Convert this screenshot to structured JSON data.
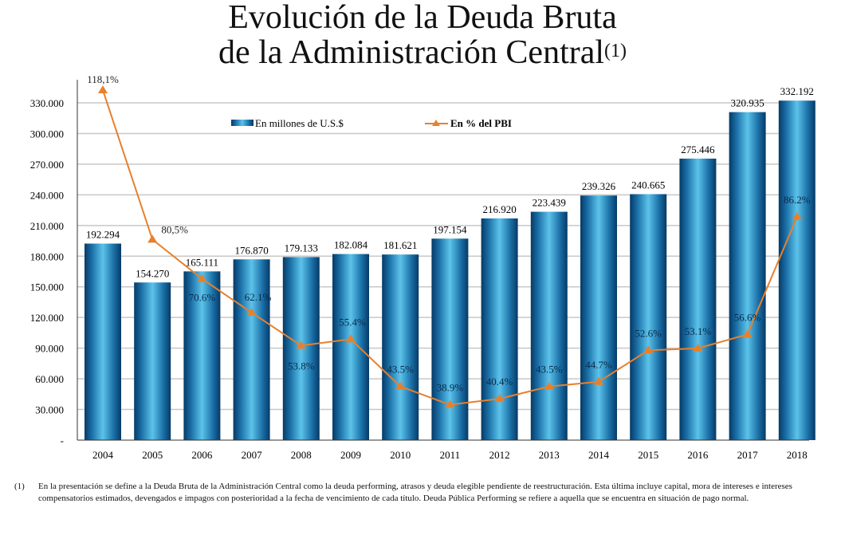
{
  "title": {
    "line1": "Evolución de la Deuda Bruta",
    "line2": "de la Administración Central",
    "superscript": "(1)"
  },
  "chart_data": {
    "type": "bar+line",
    "title": "Evolución de la Deuda Bruta de la Administración Central(1)",
    "categories": [
      "2004",
      "2005",
      "2006",
      "2007",
      "2008",
      "2009",
      "2010",
      "2011",
      "2012",
      "2013",
      "2014",
      "2015",
      "2016",
      "2017",
      "2018"
    ],
    "series": [
      {
        "name": "En millones de U.S.$",
        "type": "bar",
        "axis": "primary",
        "values": [
          192294,
          154270,
          165111,
          176870,
          179133,
          182084,
          181621,
          197154,
          216920,
          223439,
          239326,
          240665,
          275446,
          320935,
          332192
        ],
        "labels": [
          "192.294",
          "154.270",
          "165.111",
          "176.870",
          "179.133",
          "182.084",
          "181.621",
          "197.154",
          "216.920",
          "223.439",
          "239.326",
          "240.665",
          "275.446",
          "320.935",
          "332.192"
        ],
        "color": "#1a7fb5"
      },
      {
        "name": "En % del PBI",
        "type": "line",
        "axis": "secondary",
        "values": [
          118.1,
          80.5,
          70.6,
          62.1,
          53.8,
          55.4,
          43.5,
          38.9,
          40.4,
          43.5,
          44.7,
          52.6,
          53.1,
          56.6,
          86.2
        ],
        "labels": [
          "118,1%",
          "80,5%",
          "70.6%",
          "62.1%",
          "53.8%",
          "55.4%",
          "43.5%",
          "38.9%",
          "40.4%",
          "43.5%",
          "44.7%",
          "52.6%",
          "53.1%",
          "56.6%",
          "86.2%"
        ],
        "color": "#e8802c"
      }
    ],
    "yticks": [
      "-",
      "30.000",
      "60.000",
      "90.000",
      "120.000",
      "150.000",
      "180.000",
      "210.000",
      "240.000",
      "270.000",
      "300.000",
      "330.000"
    ],
    "ylim": [
      0,
      330000
    ],
    "y2lim": [
      30,
      118.1
    ],
    "grid": true,
    "legend": "top-center"
  },
  "footnote": {
    "number": "(1)",
    "text": "En la presentación se define a la Deuda Bruta de la Administración Central como la deuda performing, atrasos y deuda elegible pendiente de reestructuración. Esta última incluye capital, mora de intereses e intereses compensatorios estimados, devengados e impagos con posterioridad a la fecha de vencimiento de cada título. Deuda Pública Performing se refiere a aquella que se encuentra en situación de pago normal."
  }
}
